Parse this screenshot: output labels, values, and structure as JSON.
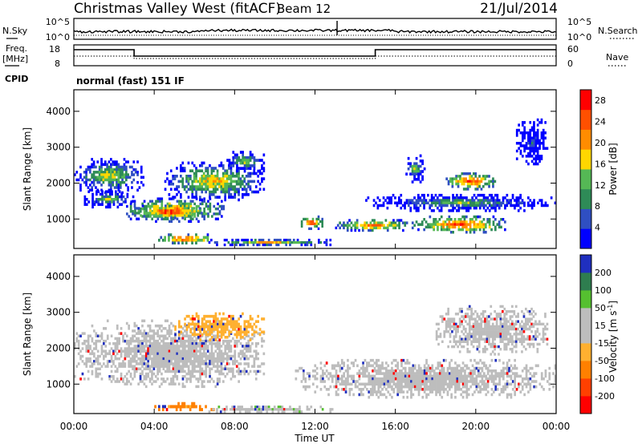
{
  "header": {
    "title": "Christmas Valley West (fitACF)",
    "beam": "Beam 12",
    "date": "21/Jul/2014"
  },
  "nsky_panel": {
    "label": "N.Sky",
    "right_label": "N.Search",
    "left_ticks": [
      "10^5",
      "10^0"
    ],
    "right_ticks": [
      "10^5",
      "10^0"
    ]
  },
  "freq_panel": {
    "label_line1": "Freq.",
    "label_line2": "[MHz]",
    "right_label": "Nave",
    "left_ticks": [
      "18",
      "8"
    ],
    "right_ticks": [
      "60",
      "0"
    ]
  },
  "cpid": {
    "label": "CPID",
    "value": "normal (fast) 151 IF"
  },
  "chart_data": [
    {
      "type": "heatmap",
      "name": "power",
      "xlabel": "Time UT",
      "ylabel": "Slant Range [km]",
      "x_ticks": [
        "00:00",
        "04:00",
        "08:00",
        "12:00",
        "16:00",
        "20:00",
        "00:00"
      ],
      "xlim_hours": [
        0,
        24
      ],
      "y_ticks": [
        1000,
        2000,
        3000,
        4000
      ],
      "ylim": [
        180,
        4600
      ],
      "colorbar": {
        "label": "Power [dB]",
        "ticks": [
          4,
          8,
          12,
          16,
          20,
          24,
          28
        ],
        "range": [
          0,
          30
        ],
        "colors": [
          "#0000ff",
          "#2f4fc2",
          "#2e8b57",
          "#55b855",
          "#ffd700",
          "#ff8c00",
          "#ff5000",
          "#ff0000"
        ]
      },
      "echo_regions": [
        {
          "t0": 0.0,
          "t1": 3.5,
          "r0": 1700,
          "r1": 2700,
          "level": 18
        },
        {
          "t0": 0.5,
          "t1": 3.0,
          "r0": 1300,
          "r1": 1800,
          "level": 16
        },
        {
          "t0": 2.5,
          "t1": 7.5,
          "r0": 900,
          "r1": 1600,
          "level": 24
        },
        {
          "t0": 3.0,
          "t1": 6.5,
          "r0": 1000,
          "r1": 1400,
          "level": 28
        },
        {
          "t0": 4.5,
          "t1": 9.5,
          "r0": 1500,
          "r1": 2600,
          "level": 20
        },
        {
          "t0": 7.5,
          "t1": 9.5,
          "r0": 2300,
          "r1": 2900,
          "level": 16
        },
        {
          "t0": 4.0,
          "t1": 7.0,
          "r0": 300,
          "r1": 600,
          "level": 26
        },
        {
          "t0": 6.5,
          "t1": 13.0,
          "r0": 250,
          "r1": 450,
          "level": 20
        },
        {
          "t0": 11.2,
          "t1": 12.5,
          "r0": 700,
          "r1": 1100,
          "level": 26
        },
        {
          "t0": 13.0,
          "t1": 17.0,
          "r0": 650,
          "r1": 1000,
          "level": 24
        },
        {
          "t0": 17.0,
          "t1": 21.5,
          "r0": 600,
          "r1": 1100,
          "level": 26
        },
        {
          "t0": 14.5,
          "t1": 24.0,
          "r0": 1200,
          "r1": 1700,
          "level": 14
        },
        {
          "t0": 18.5,
          "t1": 21.0,
          "r0": 1800,
          "r1": 2300,
          "level": 26
        },
        {
          "t0": 16.5,
          "t1": 17.5,
          "r0": 2000,
          "r1": 2800,
          "level": 16
        },
        {
          "t0": 22.0,
          "t1": 23.6,
          "r0": 2500,
          "r1": 3800,
          "level": 8
        }
      ]
    },
    {
      "type": "heatmap",
      "name": "velocity",
      "xlabel": "Time UT",
      "ylabel": "Slant Range [km]",
      "x_ticks": [
        "00:00",
        "04:00",
        "08:00",
        "12:00",
        "16:00",
        "20:00",
        "00:00"
      ],
      "xlim_hours": [
        0,
        24
      ],
      "y_ticks": [
        1000,
        2000,
        3000,
        4000
      ],
      "ylim": [
        180,
        4600
      ],
      "colorbar": {
        "label": "Velocity [m s",
        "label_sup": "-1",
        "label_end": "]",
        "ticks": [
          "200",
          "100",
          "50",
          "15",
          "-15",
          "-50",
          "-100",
          "-200"
        ],
        "colors": [
          "#1f2fbf",
          "#2e7d4f",
          "#55c030",
          "#bdbdbd",
          "#bdbdbd",
          "#ffb030",
          "#ff8000",
          "#ff4000",
          "#ff0000"
        ]
      },
      "echo_regions": [
        {
          "t0": 0.0,
          "t1": 9.5,
          "r0": 900,
          "r1": 2800,
          "velocity": 0
        },
        {
          "t0": 5.0,
          "t1": 9.5,
          "r0": 2200,
          "r1": 3000,
          "velocity": -30
        },
        {
          "t0": 4.0,
          "t1": 7.0,
          "r0": 250,
          "r1": 500,
          "velocity": -60
        },
        {
          "t0": 6.5,
          "t1": 13.0,
          "r0": 200,
          "r1": 400,
          "velocity": 40
        },
        {
          "t0": 11.0,
          "t1": 24.0,
          "r0": 600,
          "r1": 1700,
          "velocity": 0
        },
        {
          "t0": 18.0,
          "t1": 23.6,
          "r0": 1800,
          "r1": 3200,
          "velocity": 0
        }
      ]
    }
  ]
}
